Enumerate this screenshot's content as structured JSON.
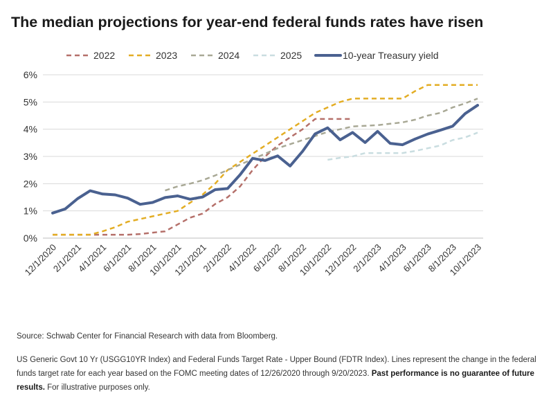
{
  "title": "The median projections for year-end federal funds rates have risen",
  "source": "Source: Schwab Center for Financial Research with data from Bloomberg.",
  "footnote": {
    "text": "US Generic Govt 10 Yr (USGG10YR Index) and Federal Funds Target Rate - Upper Bound (FDTR Index). Lines represent the change in the federal funds target rate for each year based on the FOMC meeting dates of 12/26/2020 through 9/20/2023.",
    "bold": "Past performance is no guarantee of future results.",
    "tail": "For illustrative purposes only."
  },
  "chart_data": {
    "type": "line",
    "categories": [
      "12/1/2020",
      "1/1/2021",
      "2/1/2021",
      "3/1/2021",
      "4/1/2021",
      "5/1/2021",
      "6/1/2021",
      "7/1/2021",
      "8/1/2021",
      "9/1/2021",
      "10/1/2021",
      "11/1/2021",
      "12/1/2021",
      "1/1/2022",
      "2/1/2022",
      "3/1/2022",
      "4/1/2022",
      "5/1/2022",
      "6/1/2022",
      "7/1/2022",
      "8/1/2022",
      "9/1/2022",
      "10/1/2022",
      "11/1/2022",
      "12/1/2022",
      "1/1/2023",
      "2/1/2023",
      "3/1/2023",
      "4/1/2023",
      "5/1/2023",
      "6/1/2023",
      "7/1/2023",
      "8/1/2023",
      "9/1/2023",
      "10/1/2023"
    ],
    "xtick_labels": [
      "12/1/2020",
      "2/1/2021",
      "4/1/2021",
      "6/1/2021",
      "8/1/2021",
      "10/1/2021",
      "12/1/2021",
      "2/1/2022",
      "4/1/2022",
      "6/1/2022",
      "8/1/2022",
      "10/1/2022",
      "12/1/2022",
      "2/1/2023",
      "4/1/2023",
      "6/1/2023",
      "8/1/2023",
      "10/1/2023"
    ],
    "ylim": [
      0,
      6
    ],
    "yticks": [
      "0%",
      "1%",
      "2%",
      "3%",
      "4%",
      "5%",
      "6%"
    ],
    "grid": true,
    "legend_position": "top",
    "series": [
      {
        "name": "2022",
        "color": "#b5706a",
        "dash": "dashed",
        "width": 2.5,
        "values": [
          0.125,
          0.125,
          0.125,
          0.125,
          0.125,
          0.125,
          0.125,
          0.15,
          0.2,
          0.25,
          0.5,
          0.75,
          0.9,
          1.25,
          1.5,
          1.9,
          2.5,
          3.0,
          3.4,
          3.7,
          4.0,
          4.375,
          4.375,
          4.375,
          4.375,
          null,
          null,
          null,
          null,
          null,
          null,
          null,
          null,
          null,
          null
        ]
      },
      {
        "name": "2023",
        "color": "#e3ad24",
        "dash": "dashed",
        "width": 2.5,
        "values": [
          0.125,
          0.125,
          0.125,
          0.125,
          0.25,
          0.4,
          0.6,
          0.7,
          0.8,
          0.9,
          1.0,
          1.3,
          1.6,
          2.0,
          2.5,
          2.8,
          3.1,
          3.4,
          3.7,
          4.0,
          4.3,
          4.6,
          4.8,
          5.0,
          5.125,
          5.125,
          5.125,
          5.125,
          5.125,
          5.4,
          5.625,
          5.625,
          5.625,
          5.625,
          5.625
        ]
      },
      {
        "name": "2024",
        "color": "#a8a895",
        "dash": "dashed",
        "width": 2.5,
        "values": [
          null,
          null,
          null,
          null,
          null,
          null,
          null,
          null,
          null,
          1.75,
          1.9,
          2.0,
          2.125,
          2.3,
          2.5,
          2.7,
          2.9,
          3.1,
          3.3,
          3.45,
          3.6,
          3.75,
          3.9,
          4.0,
          4.1,
          4.125,
          4.15,
          4.2,
          4.25,
          4.35,
          4.5,
          4.6,
          4.8,
          4.95,
          5.125
        ]
      },
      {
        "name": "2025",
        "color": "#c9dde0",
        "dash": "dashed",
        "width": 2.5,
        "values": [
          null,
          null,
          null,
          null,
          null,
          null,
          null,
          null,
          null,
          null,
          null,
          null,
          null,
          null,
          null,
          null,
          null,
          null,
          null,
          null,
          null,
          null,
          2.875,
          2.95,
          3.0,
          3.125,
          3.125,
          3.125,
          3.125,
          3.2,
          3.3,
          3.4,
          3.6,
          3.7,
          3.875
        ]
      },
      {
        "name": "10-year Treasury yield",
        "color": "#4a6190",
        "dash": "solid",
        "width": 4,
        "values": [
          0.92,
          1.07,
          1.45,
          1.74,
          1.62,
          1.59,
          1.47,
          1.24,
          1.31,
          1.49,
          1.55,
          1.43,
          1.51,
          1.78,
          1.82,
          2.33,
          2.93,
          2.85,
          3.02,
          2.65,
          3.19,
          3.83,
          4.05,
          3.61,
          3.88,
          3.51,
          3.92,
          3.48,
          3.43,
          3.64,
          3.82,
          3.96,
          4.11,
          4.57,
          4.88
        ]
      }
    ]
  }
}
